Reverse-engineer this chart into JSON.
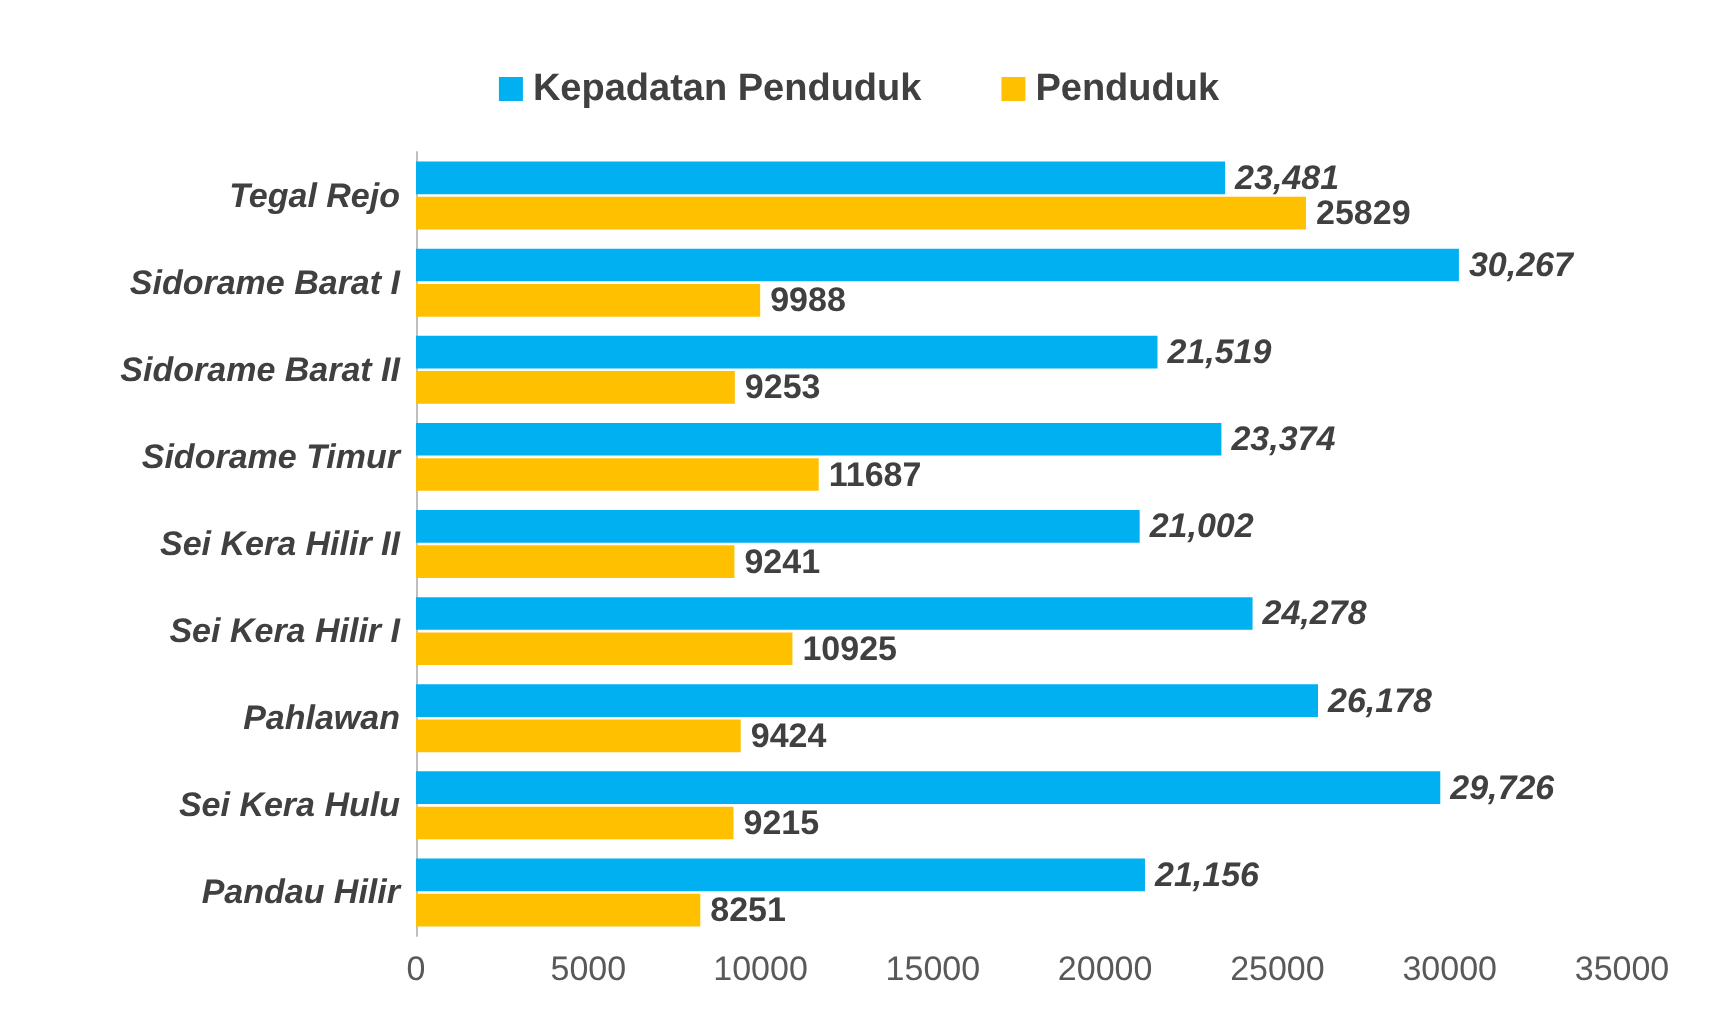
{
  "chart_data": {
    "type": "bar",
    "orientation": "horizontal",
    "categories": [
      "Tegal Rejo",
      "Sidorame Barat I",
      "Sidorame Barat II",
      "Sidorame Timur",
      "Sei Kera Hilir II",
      "Sei Kera Hilir I",
      "Pahlawan",
      "Sei Kera Hulu",
      "Pandau Hilir"
    ],
    "series": [
      {
        "name": "Kepadatan Penduduk",
        "color": "#00b0f0",
        "values": [
          23481,
          30267,
          21519,
          23374,
          21002,
          24278,
          26178,
          29726,
          21156
        ],
        "value_labels": [
          "23,481",
          "30,267",
          "21,519",
          "23,374",
          "21,002",
          "24,278",
          "26,178",
          "29,726",
          "21,156"
        ]
      },
      {
        "name": "Penduduk",
        "color": "#ffc000",
        "values": [
          25829,
          9988,
          9253,
          11687,
          9241,
          10925,
          9424,
          9215,
          8251
        ],
        "value_labels": [
          "25829",
          "9988",
          "9253",
          "11687",
          "9241",
          "10925",
          "9424",
          "9215",
          "8251"
        ]
      }
    ],
    "xlim": [
      0,
      35000
    ],
    "xticks": [
      0,
      5000,
      10000,
      15000,
      20000,
      25000,
      30000,
      35000
    ],
    "grid": false,
    "legend": "top"
  }
}
